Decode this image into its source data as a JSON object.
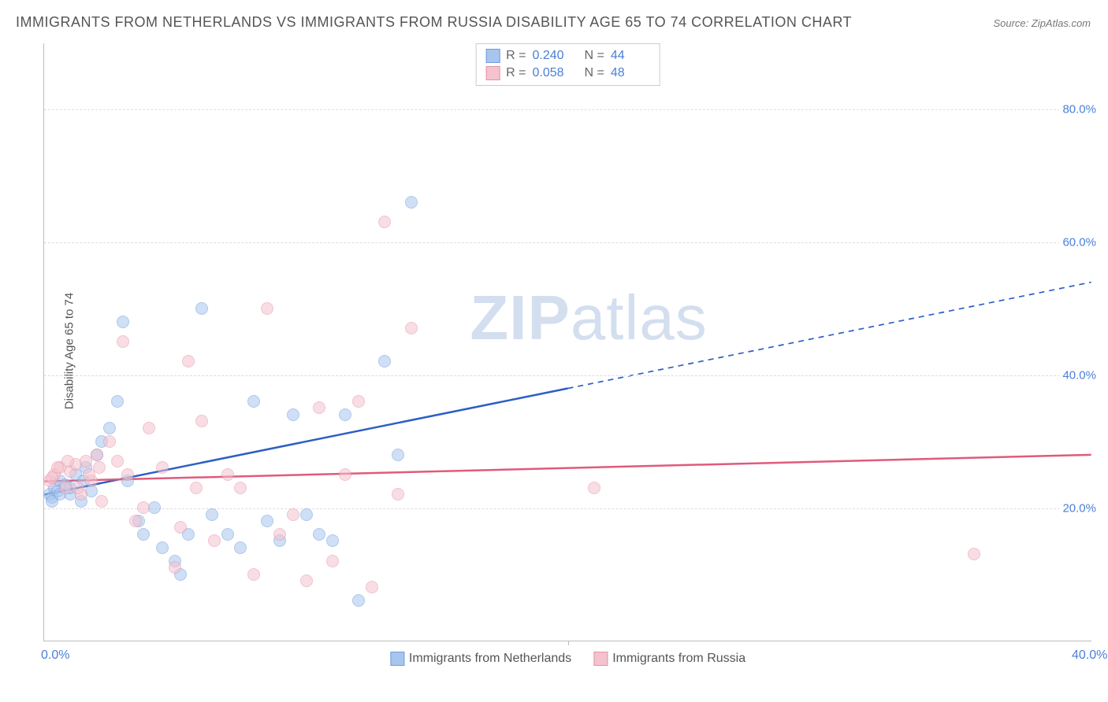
{
  "title": "IMMIGRANTS FROM NETHERLANDS VS IMMIGRANTS FROM RUSSIA DISABILITY AGE 65 TO 74 CORRELATION CHART",
  "source": "Source: ZipAtlas.com",
  "ylabel": "Disability Age 65 to 74",
  "watermark_bold": "ZIP",
  "watermark_light": "atlas",
  "chart": {
    "type": "scatter",
    "xlim": [
      0,
      40
    ],
    "ylim": [
      0,
      90
    ],
    "ytick_values": [
      20,
      40,
      60,
      80
    ],
    "ytick_labels": [
      "20.0%",
      "40.0%",
      "60.0%",
      "80.0%"
    ],
    "xtick_values": [
      0,
      20,
      40
    ],
    "xtick_labels": [
      "0.0%",
      "",
      "40.0%"
    ],
    "xtick_minor": [
      20
    ],
    "background_color": "#ffffff",
    "grid_color": "#dddddd",
    "axis_color": "#bbbbbb",
    "tick_label_color": "#4a7fd8",
    "point_radius": 8,
    "point_opacity": 0.55,
    "line_width": 2.5
  },
  "series": [
    {
      "name": "Immigrants from Netherlands",
      "fill_color": "#a8c5ed",
      "stroke_color": "#6d9de0",
      "line_color": "#2d5fc4",
      "R": "0.240",
      "N": "44",
      "regression": {
        "x1": 0,
        "y1": 22,
        "x2": 40,
        "y2": 54,
        "solid_until_x": 20
      },
      "points": [
        [
          0.2,
          22
        ],
        [
          0.3,
          21.5
        ],
        [
          0.4,
          23
        ],
        [
          0.5,
          22.5
        ],
        [
          0.6,
          24
        ],
        [
          0.8,
          23.5
        ],
        [
          1.0,
          22
        ],
        [
          1.2,
          25
        ],
        [
          1.4,
          21
        ],
        [
          1.6,
          26
        ],
        [
          1.8,
          22.5
        ],
        [
          2.0,
          28
        ],
        [
          2.2,
          30
        ],
        [
          2.5,
          32
        ],
        [
          2.8,
          36
        ],
        [
          3.0,
          48
        ],
        [
          3.2,
          24
        ],
        [
          3.6,
          18
        ],
        [
          3.8,
          16
        ],
        [
          4.2,
          20
        ],
        [
          4.5,
          14
        ],
        [
          5.0,
          12
        ],
        [
          5.2,
          10
        ],
        [
          5.5,
          16
        ],
        [
          6.0,
          50
        ],
        [
          6.4,
          19
        ],
        [
          7.0,
          16
        ],
        [
          7.5,
          14
        ],
        [
          8.0,
          36
        ],
        [
          8.5,
          18
        ],
        [
          9.0,
          15
        ],
        [
          9.5,
          34
        ],
        [
          10.0,
          19
        ],
        [
          10.5,
          16
        ],
        [
          11.0,
          15
        ],
        [
          11.5,
          34
        ],
        [
          12.0,
          6
        ],
        [
          13.0,
          42
        ],
        [
          13.5,
          28
        ],
        [
          14.0,
          66
        ],
        [
          0.3,
          21
        ],
        [
          0.6,
          22
        ],
        [
          1.0,
          23
        ],
        [
          1.5,
          24
        ]
      ]
    },
    {
      "name": "Immigrants from Russia",
      "fill_color": "#f5c2ce",
      "stroke_color": "#e693a6",
      "line_color": "#e05a7d",
      "R": "0.058",
      "N": "48",
      "regression": {
        "x1": 0,
        "y1": 24,
        "x2": 40,
        "y2": 28,
        "solid_until_x": 40
      },
      "points": [
        [
          0.2,
          24
        ],
        [
          0.4,
          25
        ],
        [
          0.6,
          26
        ],
        [
          0.8,
          23
        ],
        [
          1.0,
          25.5
        ],
        [
          1.2,
          26.5
        ],
        [
          1.4,
          22
        ],
        [
          1.6,
          27
        ],
        [
          1.8,
          24
        ],
        [
          2.0,
          28
        ],
        [
          2.2,
          21
        ],
        [
          2.5,
          30
        ],
        [
          2.8,
          27
        ],
        [
          3.0,
          45
        ],
        [
          3.2,
          25
        ],
        [
          3.5,
          18
        ],
        [
          3.8,
          20
        ],
        [
          4.0,
          32
        ],
        [
          4.5,
          26
        ],
        [
          5.0,
          11
        ],
        [
          5.2,
          17
        ],
        [
          5.5,
          42
        ],
        [
          5.8,
          23
        ],
        [
          6.0,
          33
        ],
        [
          6.5,
          15
        ],
        [
          7.0,
          25
        ],
        [
          7.5,
          23
        ],
        [
          8.0,
          10
        ],
        [
          8.5,
          50
        ],
        [
          9.0,
          16
        ],
        [
          9.5,
          19
        ],
        [
          10.0,
          9
        ],
        [
          10.5,
          35
        ],
        [
          11.0,
          12
        ],
        [
          11.5,
          25
        ],
        [
          12.0,
          36
        ],
        [
          12.5,
          8
        ],
        [
          13.0,
          63
        ],
        [
          13.5,
          22
        ],
        [
          14.0,
          47
        ],
        [
          21.0,
          23
        ],
        [
          35.5,
          13
        ],
        [
          0.3,
          24.5
        ],
        [
          0.5,
          26
        ],
        [
          0.9,
          27
        ],
        [
          1.3,
          23
        ],
        [
          1.7,
          25
        ],
        [
          2.1,
          26
        ]
      ]
    }
  ],
  "legend_bottom": [
    {
      "label": "Immigrants from Netherlands",
      "series_idx": 0
    },
    {
      "label": "Immigrants from Russia",
      "series_idx": 1
    }
  ]
}
